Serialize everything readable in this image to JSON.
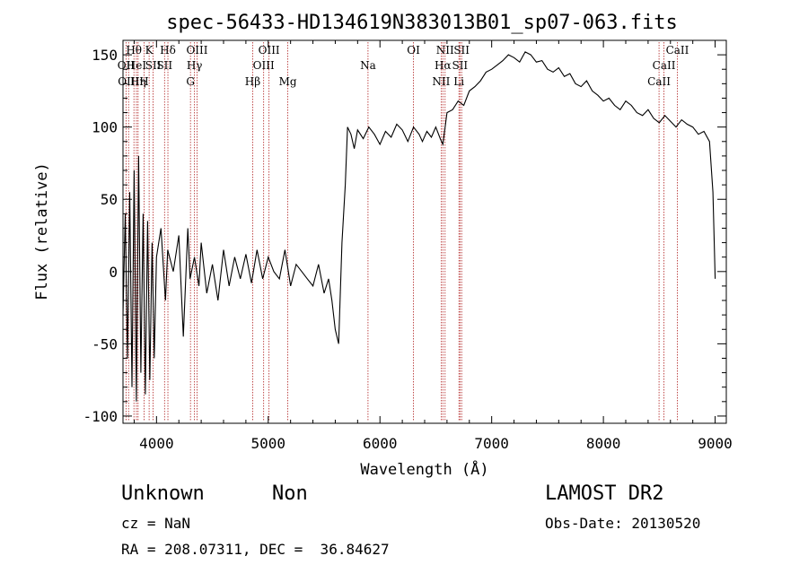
{
  "chart_data": {
    "type": "line",
    "title": "spec-56433-HD134619N383013B01_sp07-063.fits",
    "xlabel": "Wavelength (Å)",
    "ylabel": "Flux (relative)",
    "xlim": [
      3700,
      9100
    ],
    "ylim": [
      -105,
      160
    ],
    "x_ticks": [
      4000,
      5000,
      6000,
      7000,
      8000,
      9000
    ],
    "y_ticks": [
      -100,
      -50,
      0,
      50,
      100,
      150
    ],
    "series": [
      {
        "x": [
          3700,
          3720,
          3740,
          3760,
          3780,
          3800,
          3820,
          3840,
          3860,
          3880,
          3900,
          3920,
          3940,
          3960,
          3980,
          4000,
          4040,
          4080,
          4100,
          4150,
          4200,
          4240,
          4280,
          4300,
          4340,
          4380,
          4400,
          4450,
          4500,
          4550,
          4600,
          4650,
          4700,
          4750,
          4800,
          4850,
          4900,
          4950,
          5000,
          5050,
          5100,
          5150,
          5200,
          5250,
          5300,
          5350,
          5400,
          5450,
          5500,
          5540,
          5570,
          5600,
          5630,
          5660,
          5690,
          5710,
          5740,
          5770,
          5800,
          5850,
          5900,
          5950,
          6000,
          6050,
          6100,
          6150,
          6200,
          6250,
          6300,
          6350,
          6380,
          6420,
          6460,
          6500,
          6540,
          6563,
          6600,
          6650,
          6700,
          6750,
          6800,
          6850,
          6900,
          6950,
          7000,
          7050,
          7100,
          7150,
          7200,
          7250,
          7300,
          7350,
          7400,
          7450,
          7500,
          7550,
          7600,
          7650,
          7700,
          7750,
          7800,
          7850,
          7900,
          7950,
          8000,
          8050,
          8100,
          8150,
          8200,
          8250,
          8300,
          8350,
          8400,
          8450,
          8500,
          8550,
          8600,
          8650,
          8700,
          8750,
          8800,
          8850,
          8900,
          8950,
          8980,
          9000
        ],
        "y": [
          -30,
          40,
          -60,
          55,
          -80,
          70,
          -90,
          80,
          -70,
          40,
          -85,
          35,
          -75,
          20,
          -60,
          10,
          30,
          -20,
          15,
          0,
          25,
          -45,
          30,
          -5,
          10,
          -10,
          20,
          -15,
          5,
          -20,
          15,
          -10,
          10,
          -5,
          12,
          -8,
          15,
          -5,
          10,
          0,
          -5,
          15,
          -10,
          5,
          0,
          -5,
          -10,
          5,
          -15,
          -5,
          -20,
          -40,
          -50,
          20,
          60,
          100,
          95,
          85,
          98,
          92,
          100,
          95,
          88,
          97,
          93,
          102,
          98,
          90,
          100,
          95,
          90,
          97,
          93,
          100,
          92,
          88,
          110,
          112,
          118,
          115,
          125,
          128,
          132,
          138,
          140,
          143,
          146,
          150,
          148,
          145,
          152,
          150,
          145,
          146,
          140,
          138,
          141,
          135,
          137,
          130,
          128,
          132,
          125,
          122,
          118,
          120,
          115,
          112,
          118,
          115,
          110,
          108,
          112,
          106,
          103,
          108,
          104,
          100,
          105,
          102,
          100,
          95,
          97,
          90,
          55,
          -5
        ]
      }
    ],
    "spectral_lines": [
      {
        "wl": 3727,
        "labels": [
          "OII"
        ],
        "ypos": 2
      },
      {
        "wl": 3750,
        "labels": [
          "OIII"
        ],
        "ypos": 3
      },
      {
        "wl": 3798,
        "labels": [
          "Hθ"
        ],
        "ypos": 1
      },
      {
        "wl": 3820,
        "labels": [
          "HeI"
        ],
        "ypos": 2
      },
      {
        "wl": 3835,
        "labels": [
          "Hη"
        ],
        "ypos": 3
      },
      {
        "wl": 3889,
        "labels": [
          "H"
        ],
        "ypos": 3
      },
      {
        "wl": 3934,
        "labels": [
          "K"
        ],
        "ypos": 1
      },
      {
        "wl": 3970,
        "labels": [
          "SII"
        ],
        "ypos": 2
      },
      {
        "wl": 4102,
        "labels": [
          "Hδ"
        ],
        "ypos": 1
      },
      {
        "wl": 4072,
        "labels": [
          "SII"
        ],
        "ypos": 2
      },
      {
        "wl": 4304,
        "labels": [
          "G"
        ],
        "ypos": 3
      },
      {
        "wl": 4340,
        "labels": [
          "Hγ"
        ],
        "ypos": 2
      },
      {
        "wl": 4363,
        "labels": [
          "OIII"
        ],
        "ypos": 1
      },
      {
        "wl": 4861,
        "labels": [
          "Hβ"
        ],
        "ypos": 3
      },
      {
        "wl": 4959,
        "labels": [
          "OIII"
        ],
        "ypos": 2
      },
      {
        "wl": 5007,
        "labels": [
          "OIII"
        ],
        "ypos": 1
      },
      {
        "wl": 5175,
        "labels": [
          "Mg"
        ],
        "ypos": 3
      },
      {
        "wl": 5893,
        "labels": [
          "Na"
        ],
        "ypos": 2
      },
      {
        "wl": 6300,
        "labels": [
          "OI"
        ],
        "ypos": 1
      },
      {
        "wl": 6548,
        "labels": [
          "NII"
        ],
        "ypos": 3
      },
      {
        "wl": 6563,
        "labels": [
          "Hα"
        ],
        "ypos": 2
      },
      {
        "wl": 6583,
        "labels": [
          "NII"
        ],
        "ypos": 1
      },
      {
        "wl": 6707,
        "labels": [
          "Li"
        ],
        "ypos": 3
      },
      {
        "wl": 6716,
        "labels": [
          "SII"
        ],
        "ypos": 2
      },
      {
        "wl": 6731,
        "labels": [
          "SII"
        ],
        "ypos": 1
      },
      {
        "wl": 8498,
        "labels": [
          "CaII"
        ],
        "ypos": 3
      },
      {
        "wl": 8542,
        "labels": [
          "CaII"
        ],
        "ypos": 2
      },
      {
        "wl": 8662,
        "labels": [
          "CaII"
        ],
        "ypos": 1
      }
    ]
  },
  "info": {
    "object_class": "Unknown",
    "subclass": "Non",
    "cz": "cz = NaN",
    "coords": "RA = 208.07311, DEC =  36.84627",
    "survey": "LAMOST DR2",
    "obs_date": "Obs-Date: 20130520"
  }
}
